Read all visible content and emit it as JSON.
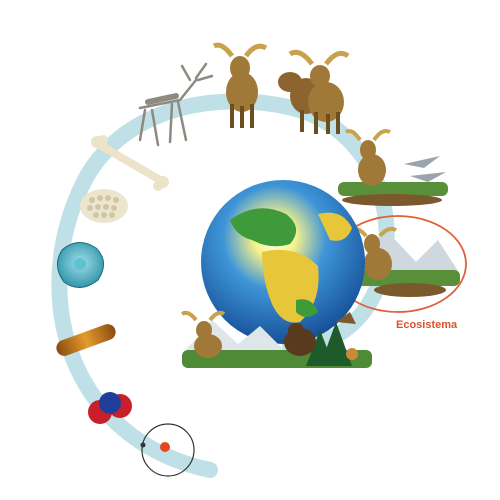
{
  "diagram": {
    "highlight_label": "Ecosistema",
    "levels": [
      "atom-icon",
      "molecule-icon",
      "organelle-icon",
      "cell-icon",
      "tissue-icon",
      "bone-organ-icon",
      "skeleton-icon",
      "moose-organism-icon",
      "moose-population-icon",
      "community-icon",
      "ecosystem-icon",
      "biosphere-globe-icon"
    ],
    "colors": {
      "spiral": "#bfe0e6",
      "highlight": "#e0603a",
      "label": "#d9532c",
      "ocean": "#1f6fb8",
      "land": "#e8c63a",
      "moose": "#a07838"
    }
  }
}
